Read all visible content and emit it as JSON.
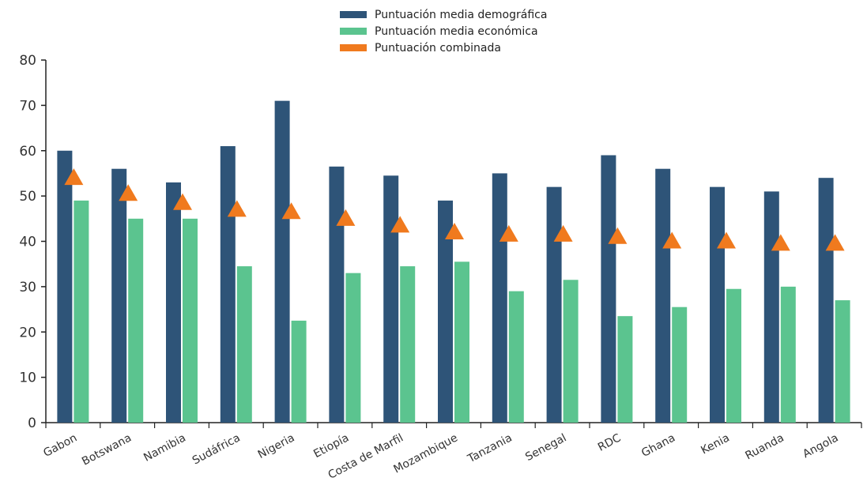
{
  "chart_data": {
    "type": "bar",
    "categories": [
      "Gabon",
      "Botswana",
      "Namibia",
      "Sudáfrica",
      "Nigeria",
      "Etiopía",
      "Costa de Marfil",
      "Mozambique",
      "Tanzania",
      "Senegal",
      "RDC",
      "Ghana",
      "Kenia",
      "Ruanda",
      "Angola"
    ],
    "series": [
      {
        "name": "Puntuación media demográfica",
        "kind": "bar",
        "color": "#2e5478",
        "values": [
          60,
          56,
          53,
          61,
          71,
          56.5,
          54.5,
          49,
          55,
          52,
          59,
          56,
          52,
          51,
          54
        ]
      },
      {
        "name": "Puntuación media económica",
        "kind": "bar",
        "color": "#5bc48f",
        "values": [
          49,
          45,
          45,
          34.5,
          22.5,
          33,
          34.5,
          35.5,
          29,
          31.5,
          23.5,
          25.5,
          29.5,
          30,
          27
        ]
      },
      {
        "name": "Puntuación combinada",
        "kind": "marker",
        "marker": "triangle",
        "color": "#f07a1e",
        "values": [
          54,
          50.5,
          48.5,
          47,
          46.5,
          45,
          43.5,
          42,
          41.5,
          41.5,
          41,
          40,
          40,
          39.5,
          39.5
        ]
      }
    ],
    "ylim": [
      0,
      80
    ],
    "yticks": [
      "0",
      "10",
      "20",
      "30",
      "40",
      "50",
      "60",
      "70",
      "80"
    ],
    "xlabel": "",
    "ylabel": "",
    "grid": false,
    "legend_position": "top-center"
  }
}
